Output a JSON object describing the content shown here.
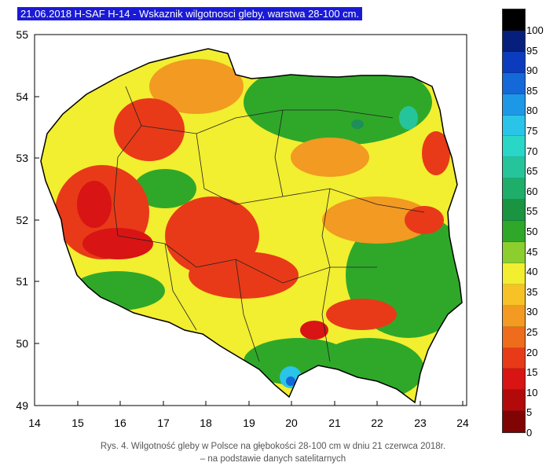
{
  "map": {
    "title": "21.06.2018 H-SAF H-14 - Wskaznik wilgotnosci gleby, warstwa 28-100 cm.",
    "lat_ticks": [
      "55",
      "54",
      "53",
      "52",
      "51",
      "50",
      "49"
    ],
    "lon_ticks": [
      "14",
      "15",
      "16",
      "17",
      "18",
      "19",
      "20",
      "21",
      "22",
      "23",
      "24"
    ]
  },
  "legend": {
    "labels": [
      "100",
      "95",
      "90",
      "85",
      "80",
      "75",
      "70",
      "65",
      "60",
      "55",
      "50",
      "45",
      "40",
      "35",
      "30",
      "25",
      "20",
      "15",
      "10",
      "5",
      "0"
    ],
    "colors": [
      "#000000",
      "#071f7c",
      "#0c3cbd",
      "#1468d8",
      "#1c98e6",
      "#2ac4e8",
      "#2ad6c6",
      "#26c49a",
      "#1eae6a",
      "#1a9440",
      "#2fa82a",
      "#8cce2e",
      "#f2ee30",
      "#f6c226",
      "#f29a22",
      "#ee6c1c",
      "#e83a18",
      "#d81414",
      "#b20a0a",
      "#800404"
    ]
  },
  "caption": {
    "line1": "Rys. 4. Wilgotność gleby w Polsce na głębokości 28-100 cm w dniu 21 czerwca 2018r.",
    "line2": "– na podstawie danych satelitarnych"
  }
}
